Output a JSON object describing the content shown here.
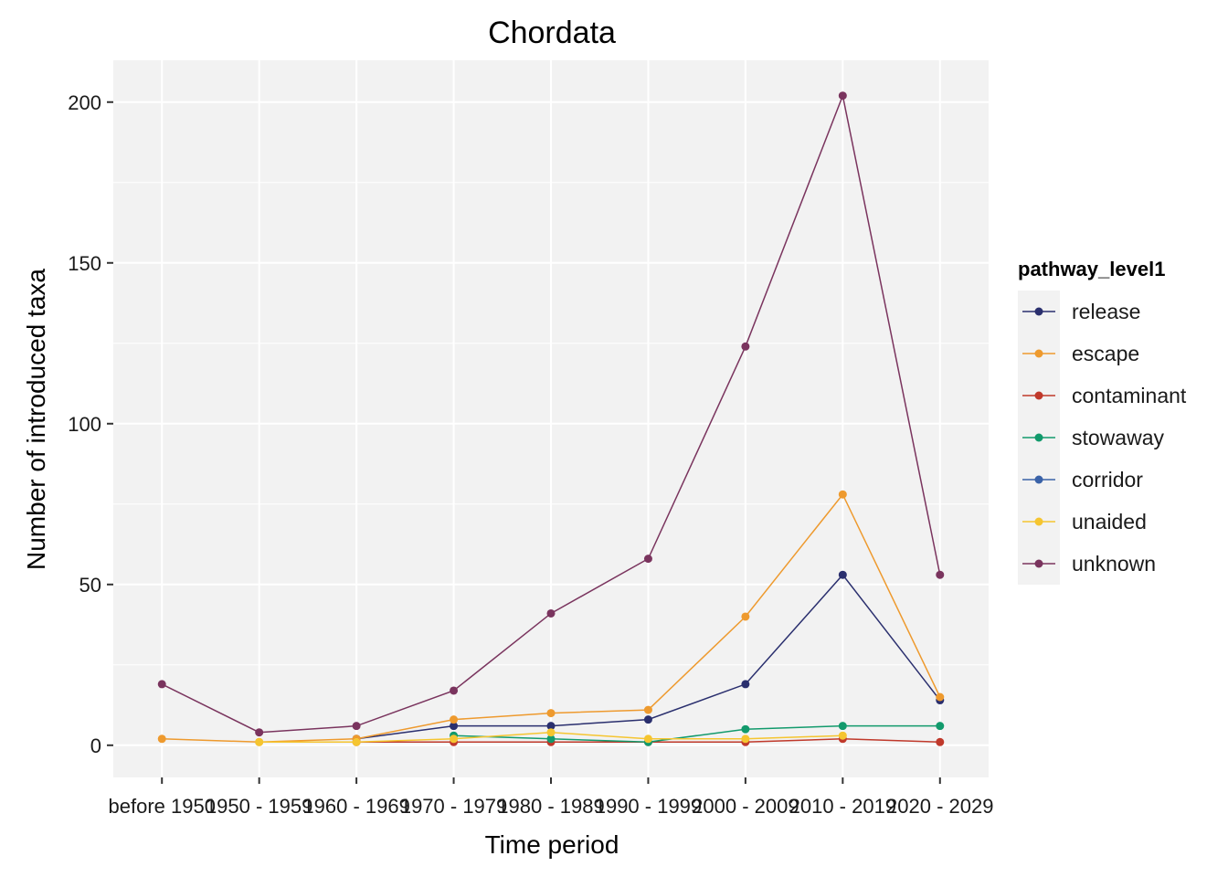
{
  "chart_data": {
    "type": "line",
    "title": "Chordata",
    "xlabel": "Time period",
    "ylabel": "Number of introduced taxa",
    "categories": [
      "before 1950",
      "1950 - 1959",
      "1960 - 1969",
      "1970 - 1979",
      "1980 - 1989",
      "1990 - 1999",
      "2000 - 2009",
      "2010 - 2019",
      "2020 - 2029"
    ],
    "ylim": [
      -10,
      213
    ],
    "yticks": [
      0,
      50,
      100,
      150,
      200
    ],
    "grid": true,
    "legend_title": "pathway_level1",
    "legend_position": "right",
    "series": [
      {
        "name": "release",
        "color": "#2a2f6e",
        "values": [
          null,
          null,
          2,
          6,
          6,
          8,
          19,
          53,
          14
        ]
      },
      {
        "name": "escape",
        "color": "#ee9a2e",
        "values": [
          2,
          1,
          2,
          8,
          10,
          11,
          40,
          78,
          15
        ]
      },
      {
        "name": "contaminant",
        "color": "#c0392b",
        "values": [
          null,
          null,
          1,
          1,
          1,
          1,
          1,
          2,
          1
        ]
      },
      {
        "name": "stowaway",
        "color": "#129a6c",
        "values": [
          null,
          null,
          null,
          3,
          2,
          1,
          5,
          6,
          6
        ]
      },
      {
        "name": "corridor",
        "color": "#3a62a8",
        "values": [
          null,
          null,
          null,
          null,
          null,
          null,
          null,
          null,
          null
        ]
      },
      {
        "name": "unaided",
        "color": "#f5c530",
        "values": [
          null,
          1,
          1,
          2,
          4,
          2,
          2,
          3,
          null
        ]
      },
      {
        "name": "unknown",
        "color": "#7a345e",
        "values": [
          19,
          4,
          6,
          17,
          41,
          58,
          124,
          202,
          53
        ]
      }
    ]
  }
}
